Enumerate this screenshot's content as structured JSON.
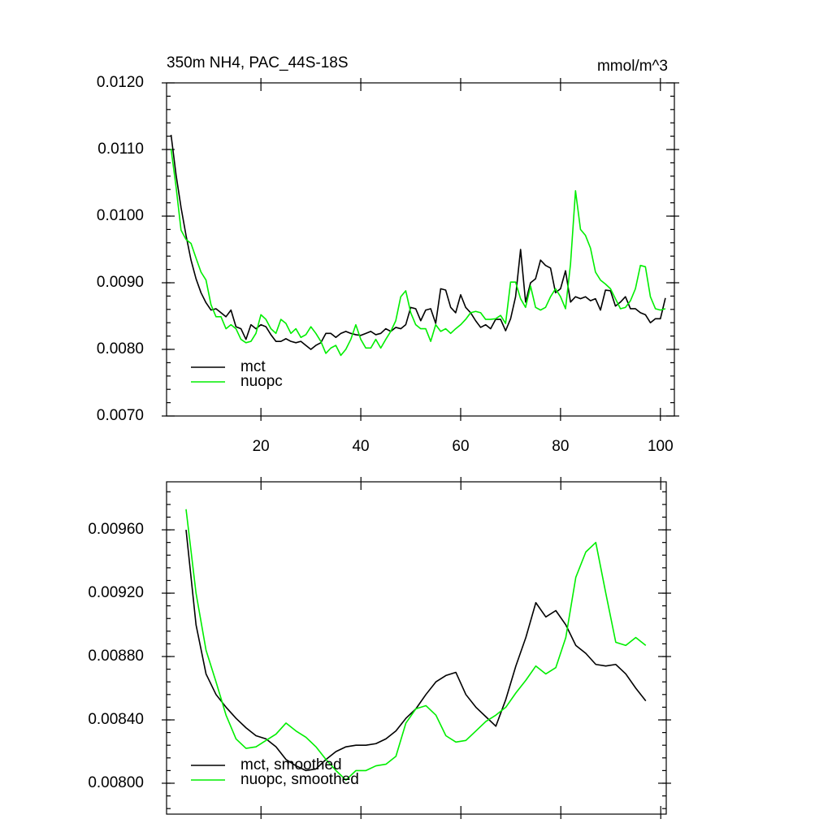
{
  "chart_data": [
    {
      "type": "line",
      "title": "350m NH4, PAC_44S-18S",
      "units_label": "mmol/m^3",
      "xlim": [
        1.1,
        102.8
      ],
      "xticks": [
        20,
        40,
        60,
        80,
        100
      ],
      "ylim": [
        0.007,
        0.012
      ],
      "yticks": [
        {
          "value": 0.007,
          "label": "0.0070"
        },
        {
          "value": 0.008,
          "label": "0.0080"
        },
        {
          "value": 0.009,
          "label": "0.0090"
        },
        {
          "value": 0.01,
          "label": "0.0100"
        },
        {
          "value": 0.011,
          "label": "0.0110"
        },
        {
          "value": 0.012,
          "label": "0.0120"
        }
      ],
      "legend": "lower left",
      "x": [
        2,
        3,
        4,
        5,
        6,
        7,
        8,
        9,
        10,
        11,
        12,
        13,
        14,
        15,
        16,
        17,
        18,
        19,
        20,
        21,
        22,
        23,
        24,
        25,
        26,
        27,
        28,
        29,
        30,
        31,
        32,
        33,
        34,
        35,
        36,
        37,
        38,
        39,
        40,
        41,
        42,
        43,
        44,
        45,
        46,
        47,
        48,
        49,
        50,
        51,
        52,
        53,
        54,
        55,
        56,
        57,
        58,
        59,
        60,
        61,
        62,
        63,
        64,
        65,
        66,
        67,
        68,
        69,
        70,
        71,
        72,
        73,
        74,
        75,
        76,
        77,
        78,
        79,
        80,
        81,
        82,
        83,
        84,
        85,
        86,
        87,
        88,
        89,
        90,
        91,
        92,
        93,
        94,
        95,
        96,
        97,
        98,
        99,
        100,
        101
      ],
      "series": [
        {
          "name": "mct",
          "color": "#000000",
          "values": [
            0.01122,
            0.01062,
            0.01013,
            0.00971,
            0.00934,
            0.00906,
            0.00885,
            0.0087,
            0.00859,
            0.00861,
            0.00855,
            0.00849,
            0.00859,
            0.00834,
            0.00831,
            0.00815,
            0.00837,
            0.00831,
            0.00837,
            0.00834,
            0.00822,
            0.00812,
            0.00812,
            0.00816,
            0.00812,
            0.0081,
            0.00812,
            0.00806,
            0.008,
            0.00806,
            0.0081,
            0.00824,
            0.00824,
            0.00818,
            0.00824,
            0.00827,
            0.00824,
            0.00822,
            0.00821,
            0.00824,
            0.00827,
            0.00822,
            0.00824,
            0.00831,
            0.00827,
            0.00833,
            0.00831,
            0.00837,
            0.00863,
            0.00861,
            0.00843,
            0.00859,
            0.00861,
            0.00839,
            0.00891,
            0.00889,
            0.00863,
            0.00855,
            0.00882,
            0.00863,
            0.00855,
            0.00843,
            0.00833,
            0.00837,
            0.00831,
            0.00845,
            0.00845,
            0.00828,
            0.00846,
            0.00879,
            0.0095,
            0.00871,
            0.009,
            0.00906,
            0.00934,
            0.00926,
            0.00922,
            0.00885,
            0.00891,
            0.00918,
            0.00871,
            0.00879,
            0.00876,
            0.00879,
            0.00873,
            0.00876,
            0.00859,
            0.00889,
            0.00888,
            0.00865,
            0.00871,
            0.00879,
            0.00861,
            0.00861,
            0.00855,
            0.00852,
            0.0084,
            0.00846,
            0.00846,
            0.00877
          ]
        },
        {
          "name": "nuopc",
          "color": "#00ee00",
          "values": [
            0.01101,
            0.01044,
            0.00979,
            0.00965,
            0.00959,
            0.00937,
            0.00916,
            0.00904,
            0.00867,
            0.00849,
            0.00849,
            0.00831,
            0.00837,
            0.00831,
            0.00815,
            0.0081,
            0.00812,
            0.00824,
            0.00852,
            0.00845,
            0.00831,
            0.00824,
            0.00845,
            0.00839,
            0.00824,
            0.00831,
            0.00818,
            0.00822,
            0.00834,
            0.00824,
            0.00812,
            0.00794,
            0.00802,
            0.00806,
            0.00791,
            0.008,
            0.00815,
            0.00837,
            0.00815,
            0.00802,
            0.00802,
            0.00815,
            0.00802,
            0.00815,
            0.00827,
            0.00843,
            0.00879,
            0.00888,
            0.00855,
            0.00837,
            0.00831,
            0.00831,
            0.00812,
            0.00837,
            0.00827,
            0.00831,
            0.00824,
            0.00831,
            0.00837,
            0.00845,
            0.00855,
            0.00857,
            0.00855,
            0.00845,
            0.00845,
            0.00846,
            0.00851,
            0.00839,
            0.00901,
            0.00901,
            0.00876,
            0.00863,
            0.00895,
            0.00863,
            0.00859,
            0.00863,
            0.00879,
            0.00891,
            0.00879,
            0.00861,
            0.00928,
            0.01038,
            0.0098,
            0.00971,
            0.00952,
            0.00916,
            0.00904,
            0.00898,
            0.00891,
            0.00876,
            0.00861,
            0.00863,
            0.00873,
            0.00891,
            0.00926,
            0.00924,
            0.00879,
            0.00861,
            0.00859,
            0.00861
          ]
        }
      ]
    },
    {
      "type": "line",
      "xlim": [
        1.1,
        101.1
      ],
      "ylim": [
        0.007805,
        0.009903
      ],
      "yticks": [
        {
          "value": 0.008,
          "label": "0.00800"
        },
        {
          "value": 0.0084,
          "label": "0.00840"
        },
        {
          "value": 0.0088,
          "label": "0.00880"
        },
        {
          "value": 0.0092,
          "label": "0.00920"
        },
        {
          "value": 0.0096,
          "label": "0.00960"
        }
      ],
      "legend": "lower left",
      "x": [
        5,
        7,
        9,
        11,
        13,
        15,
        17,
        19,
        21,
        23,
        25,
        27,
        29,
        31,
        33,
        35,
        37,
        39,
        41,
        43,
        45,
        47,
        49,
        51,
        53,
        55,
        57,
        59,
        61,
        63,
        65,
        67,
        69,
        71,
        73,
        75,
        77,
        79,
        81,
        83,
        85,
        87,
        89,
        91,
        93,
        95,
        97
      ],
      "series": [
        {
          "name": "mct, smoothed",
          "color": "#000000",
          "values": [
            0.0096,
            0.009,
            0.00869,
            0.00856,
            0.00848,
            0.00841,
            0.00835,
            0.0083,
            0.00828,
            0.00823,
            0.00815,
            0.00811,
            0.00808,
            0.00809,
            0.00815,
            0.0082,
            0.00823,
            0.00824,
            0.00824,
            0.00825,
            0.00828,
            0.00833,
            0.00841,
            0.00847,
            0.00856,
            0.00864,
            0.00868,
            0.0087,
            0.00856,
            0.00848,
            0.00842,
            0.00836,
            0.00853,
            0.00874,
            0.00892,
            0.00914,
            0.00905,
            0.00909,
            0.009,
            0.00887,
            0.00882,
            0.00875,
            0.00874,
            0.00875,
            0.00869,
            0.0086,
            0.00852
          ]
        },
        {
          "name": "nuopc, smoothed",
          "color": "#00ee00",
          "values": [
            0.00973,
            0.0092,
            0.00884,
            0.00864,
            0.00843,
            0.00828,
            0.00822,
            0.00823,
            0.00827,
            0.00831,
            0.00838,
            0.00833,
            0.00829,
            0.00823,
            0.00815,
            0.00808,
            0.00802,
            0.00808,
            0.00808,
            0.00811,
            0.00812,
            0.00817,
            0.00838,
            0.00847,
            0.00849,
            0.00843,
            0.0083,
            0.00826,
            0.00827,
            0.00833,
            0.00839,
            0.00843,
            0.00848,
            0.00857,
            0.00865,
            0.00874,
            0.00869,
            0.00873,
            0.00892,
            0.0093,
            0.00946,
            0.00952,
            0.0092,
            0.00889,
            0.00887,
            0.00892,
            0.00887
          ]
        }
      ]
    }
  ]
}
